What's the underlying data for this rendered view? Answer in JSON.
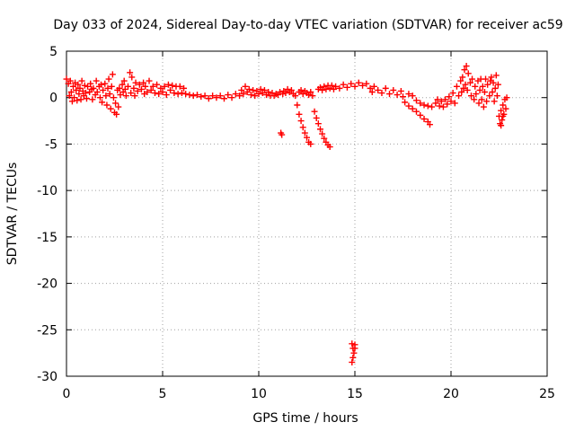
{
  "chart_data": {
    "type": "scatter",
    "title": "Day 033 of 2024, Sidereal Day-to-day VTEC variation (SDTVAR) for receiver ac59",
    "xlabel": "GPS time / hours",
    "ylabel": "SDTVAR / TECUs",
    "xlim": [
      0,
      25
    ],
    "ylim": [
      -30,
      5
    ],
    "xticks": [
      0,
      5,
      10,
      15,
      20,
      25
    ],
    "yticks": [
      5,
      0,
      -5,
      -10,
      -15,
      -20,
      -25,
      -30
    ],
    "grid": true,
    "marker": "+",
    "series": [
      {
        "name": "SDTVAR",
        "color": "#ff0000",
        "points": [
          [
            0.0,
            2.0
          ],
          [
            0.1,
            1.5
          ],
          [
            0.15,
            0.2
          ],
          [
            0.2,
            1.8
          ],
          [
            0.25,
            0.6
          ],
          [
            0.3,
            -0.4
          ],
          [
            0.35,
            1.2
          ],
          [
            0.4,
            0.0
          ],
          [
            0.45,
            1.6
          ],
          [
            0.5,
            0.8
          ],
          [
            0.55,
            -0.3
          ],
          [
            0.6,
            1.4
          ],
          [
            0.65,
            0.4
          ],
          [
            0.7,
            1.0
          ],
          [
            0.75,
            -0.2
          ],
          [
            0.8,
            1.8
          ],
          [
            0.85,
            0.7
          ],
          [
            0.9,
            0.2
          ],
          [
            0.95,
            1.3
          ],
          [
            1.0,
            0.5
          ],
          [
            1.05,
            -0.1
          ],
          [
            1.1,
            1.2
          ],
          [
            1.2,
            0.6
          ],
          [
            1.25,
            1.5
          ],
          [
            1.3,
            0.9
          ],
          [
            1.35,
            -0.2
          ],
          [
            1.4,
            1.0
          ],
          [
            1.5,
            0.3
          ],
          [
            1.55,
            1.8
          ],
          [
            1.6,
            0.6
          ],
          [
            1.7,
            1.2
          ],
          [
            1.75,
            0.0
          ],
          [
            1.8,
            1.4
          ],
          [
            1.85,
            -0.5
          ],
          [
            1.9,
            0.8
          ],
          [
            2.0,
            1.5
          ],
          [
            2.05,
            0.2
          ],
          [
            2.1,
            -0.8
          ],
          [
            2.15,
            1.0
          ],
          [
            2.2,
            2.0
          ],
          [
            2.25,
            0.4
          ],
          [
            2.3,
            -1.2
          ],
          [
            2.35,
            1.2
          ],
          [
            2.4,
            2.5
          ],
          [
            2.45,
            0.0
          ],
          [
            2.5,
            -1.6
          ],
          [
            2.55,
            -0.6
          ],
          [
            2.6,
            -1.8
          ],
          [
            2.65,
            0.8
          ],
          [
            2.7,
            -1.0
          ],
          [
            2.75,
            1.0
          ],
          [
            2.8,
            0.3
          ],
          [
            2.9,
            1.4
          ],
          [
            2.95,
            0.6
          ],
          [
            3.0,
            1.8
          ],
          [
            3.05,
            0.9
          ],
          [
            3.1,
            0.2
          ],
          [
            3.2,
            1.2
          ],
          [
            3.3,
            2.7
          ],
          [
            3.35,
            0.5
          ],
          [
            3.4,
            2.2
          ],
          [
            3.5,
            1.0
          ],
          [
            3.55,
            0.2
          ],
          [
            3.6,
            1.6
          ],
          [
            3.7,
            0.7
          ],
          [
            3.8,
            1.4
          ],
          [
            3.9,
            0.9
          ],
          [
            4.0,
            1.6
          ],
          [
            4.05,
            0.4
          ],
          [
            4.1,
            1.2
          ],
          [
            4.2,
            0.6
          ],
          [
            4.3,
            1.8
          ],
          [
            4.4,
            0.8
          ],
          [
            4.5,
            1.2
          ],
          [
            4.6,
            0.5
          ],
          [
            4.7,
            1.4
          ],
          [
            4.8,
            0.4
          ],
          [
            4.9,
            1.0
          ],
          [
            5.0,
            0.6
          ],
          [
            5.1,
            1.2
          ],
          [
            5.2,
            0.3
          ],
          [
            5.3,
            1.4
          ],
          [
            5.4,
            0.8
          ],
          [
            5.5,
            1.3
          ],
          [
            5.6,
            0.5
          ],
          [
            5.7,
            1.2
          ],
          [
            5.8,
            0.4
          ],
          [
            5.9,
            1.2
          ],
          [
            6.0,
            0.5
          ],
          [
            6.1,
            1.0
          ],
          [
            6.2,
            0.4
          ],
          [
            6.4,
            0.3
          ],
          [
            6.6,
            0.2
          ],
          [
            6.8,
            0.3
          ],
          [
            7.0,
            0.1
          ],
          [
            7.2,
            0.2
          ],
          [
            7.4,
            -0.1
          ],
          [
            7.6,
            0.2
          ],
          [
            7.8,
            0.0
          ],
          [
            8.0,
            0.2
          ],
          [
            8.2,
            -0.1
          ],
          [
            8.4,
            0.3
          ],
          [
            8.6,
            0.0
          ],
          [
            8.8,
            0.4
          ],
          [
            9.0,
            0.2
          ],
          [
            9.1,
            0.8
          ],
          [
            9.2,
            0.4
          ],
          [
            9.3,
            1.2
          ],
          [
            9.4,
            0.6
          ],
          [
            9.5,
            0.9
          ],
          [
            9.6,
            0.3
          ],
          [
            9.7,
            0.8
          ],
          [
            9.8,
            0.2
          ],
          [
            9.9,
            0.7
          ],
          [
            10.0,
            0.4
          ],
          [
            10.1,
            0.9
          ],
          [
            10.2,
            0.5
          ],
          [
            10.3,
            0.8
          ],
          [
            10.4,
            0.3
          ],
          [
            10.5,
            0.6
          ],
          [
            10.6,
            0.2
          ],
          [
            10.7,
            0.5
          ],
          [
            10.8,
            0.2
          ],
          [
            10.9,
            0.4
          ],
          [
            11.0,
            0.3
          ],
          [
            11.1,
            0.6
          ],
          [
            11.15,
            -3.8
          ],
          [
            11.2,
            -4.0
          ],
          [
            11.25,
            0.4
          ],
          [
            11.3,
            0.7
          ],
          [
            11.4,
            0.5
          ],
          [
            11.5,
            0.9
          ],
          [
            11.6,
            0.6
          ],
          [
            11.7,
            0.8
          ],
          [
            11.8,
            0.4
          ],
          [
            11.9,
            0.2
          ],
          [
            12.0,
            -0.8
          ],
          [
            12.1,
            -1.8
          ],
          [
            12.2,
            -2.5
          ],
          [
            12.3,
            -3.2
          ],
          [
            12.4,
            -3.8
          ],
          [
            12.5,
            -4.3
          ],
          [
            12.6,
            -4.8
          ],
          [
            12.7,
            -5.0
          ],
          [
            12.1,
            0.6
          ],
          [
            12.2,
            0.8
          ],
          [
            12.3,
            0.4
          ],
          [
            12.4,
            0.7
          ],
          [
            12.5,
            0.5
          ],
          [
            12.6,
            0.3
          ],
          [
            12.7,
            0.6
          ],
          [
            12.8,
            0.2
          ],
          [
            12.9,
            -1.5
          ],
          [
            13.0,
            -2.2
          ],
          [
            13.1,
            -2.8
          ],
          [
            13.2,
            -3.4
          ],
          [
            13.3,
            -3.9
          ],
          [
            13.4,
            -4.4
          ],
          [
            13.5,
            -4.8
          ],
          [
            13.6,
            -5.1
          ],
          [
            13.7,
            -5.3
          ],
          [
            13.1,
            0.9
          ],
          [
            13.2,
            1.1
          ],
          [
            13.3,
            0.8
          ],
          [
            13.4,
            1.2
          ],
          [
            13.5,
            0.9
          ],
          [
            13.6,
            1.3
          ],
          [
            13.7,
            1.0
          ],
          [
            13.8,
            1.3
          ],
          [
            13.9,
            0.9
          ],
          [
            14.0,
            1.2
          ],
          [
            14.2,
            1.0
          ],
          [
            14.4,
            1.4
          ],
          [
            14.6,
            1.1
          ],
          [
            14.8,
            1.5
          ],
          [
            14.85,
            -26.5
          ],
          [
            14.9,
            -27.0
          ],
          [
            14.95,
            -27.5
          ],
          [
            15.0,
            -27.0
          ],
          [
            14.9,
            -28.0
          ],
          [
            14.85,
            -28.5
          ],
          [
            15.0,
            -26.6
          ],
          [
            15.0,
            1.2
          ],
          [
            15.2,
            1.6
          ],
          [
            15.4,
            1.3
          ],
          [
            15.6,
            1.5
          ],
          [
            15.8,
            1.0
          ],
          [
            15.9,
            0.6
          ],
          [
            16.0,
            1.2
          ],
          [
            16.2,
            0.8
          ],
          [
            16.4,
            0.5
          ],
          [
            16.6,
            1.0
          ],
          [
            16.8,
            0.4
          ],
          [
            17.0,
            0.8
          ],
          [
            17.2,
            0.3
          ],
          [
            17.4,
            0.7
          ],
          [
            17.5,
            0.1
          ],
          [
            17.6,
            -0.5
          ],
          [
            17.8,
            -0.9
          ],
          [
            18.0,
            -1.2
          ],
          [
            18.2,
            -1.5
          ],
          [
            18.4,
            -1.9
          ],
          [
            18.6,
            -2.3
          ],
          [
            18.8,
            -2.6
          ],
          [
            18.9,
            -2.9
          ],
          [
            17.8,
            0.4
          ],
          [
            18.0,
            0.2
          ],
          [
            18.2,
            -0.3
          ],
          [
            18.4,
            -0.6
          ],
          [
            18.6,
            -0.8
          ],
          [
            18.8,
            -0.9
          ],
          [
            19.0,
            -1.0
          ],
          [
            19.2,
            -0.6
          ],
          [
            19.3,
            -0.2
          ],
          [
            19.4,
            -0.9
          ],
          [
            19.5,
            -0.4
          ],
          [
            19.6,
            -1.0
          ],
          [
            19.7,
            -0.2
          ],
          [
            19.8,
            -0.7
          ],
          [
            19.9,
            0.1
          ],
          [
            20.0,
            -0.4
          ],
          [
            20.1,
            0.5
          ],
          [
            20.2,
            -0.6
          ],
          [
            20.3,
            1.2
          ],
          [
            20.4,
            0.2
          ],
          [
            20.5,
            1.8
          ],
          [
            20.55,
            0.6
          ],
          [
            20.6,
            2.2
          ],
          [
            20.65,
            1.0
          ],
          [
            20.7,
            3.0
          ],
          [
            20.75,
            1.4
          ],
          [
            20.8,
            3.4
          ],
          [
            20.85,
            0.8
          ],
          [
            20.9,
            2.6
          ],
          [
            21.0,
            1.6
          ],
          [
            21.05,
            0.2
          ],
          [
            21.1,
            2.0
          ],
          [
            21.2,
            -0.2
          ],
          [
            21.25,
            1.2
          ],
          [
            21.3,
            0.4
          ],
          [
            21.4,
            1.8
          ],
          [
            21.45,
            -0.6
          ],
          [
            21.5,
            0.8
          ],
          [
            21.55,
            2.0
          ],
          [
            21.6,
            -0.2
          ],
          [
            21.65,
            1.2
          ],
          [
            21.7,
            -1.0
          ],
          [
            21.75,
            0.6
          ],
          [
            21.8,
            2.0
          ],
          [
            21.85,
            -0.4
          ],
          [
            21.9,
            1.4
          ],
          [
            22.0,
            0.2
          ],
          [
            22.05,
            1.8
          ],
          [
            22.1,
            2.2
          ],
          [
            22.15,
            0.6
          ],
          [
            22.2,
            1.6
          ],
          [
            22.25,
            -0.4
          ],
          [
            22.3,
            1.0
          ],
          [
            22.35,
            2.4
          ],
          [
            22.4,
            0.2
          ],
          [
            22.45,
            1.4
          ],
          [
            22.5,
            -2.0
          ],
          [
            22.55,
            -2.8
          ],
          [
            22.6,
            -1.4
          ],
          [
            22.65,
            -2.4
          ],
          [
            22.7,
            -0.8
          ],
          [
            22.75,
            -1.8
          ],
          [
            22.8,
            -0.2
          ],
          [
            22.85,
            -1.2
          ],
          [
            22.9,
            0.0
          ],
          [
            22.6,
            -3.0
          ],
          [
            22.7,
            -2.0
          ]
        ]
      }
    ]
  }
}
